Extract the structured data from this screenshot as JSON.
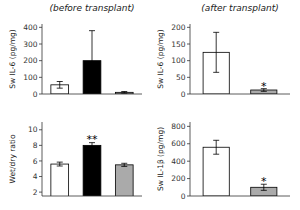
{
  "chart_data": [
    {
      "type": "bar",
      "title": "(before transplant)",
      "y_label": "Sw IL-6 (pg/mg)",
      "categories": [
        null,
        null,
        null
      ],
      "values": [
        55,
        200,
        10
      ],
      "errors": [
        20,
        180,
        5
      ],
      "colors": [
        "white",
        "black",
        "#aaaaaa"
      ],
      "ylim": [
        0,
        420
      ],
      "yticks": [
        0,
        100,
        200,
        300,
        400
      ],
      "tick_labels": "y",
      "grid": false
    },
    {
      "type": "bar",
      "title": "(after transplant)",
      "y_label": "Sw IL-6 (pg/mg)",
      "categories": [
        null,
        null
      ],
      "values": [
        125,
        12
      ],
      "errors": [
        60,
        4
      ],
      "colors": [
        "white",
        "#aaaaaa"
      ],
      "ylim": [
        0,
        210
      ],
      "yticks": [
        0,
        50,
        100,
        150,
        200
      ],
      "tick_labels": "y",
      "grid": false,
      "annotations": [
        {
          "text": "*",
          "index": 1,
          "y": 18
        }
      ]
    },
    {
      "type": "bar",
      "y_label": "Wet/dry ratio",
      "categories": [
        null,
        null,
        null
      ],
      "values": [
        5.6,
        8.0,
        5.5
      ],
      "errors": [
        0.25,
        0.35,
        0.2
      ],
      "colors": [
        "white",
        "black",
        "#aaaaaa"
      ],
      "ylim": [
        1.5,
        11
      ],
      "yticks": [
        2,
        4,
        6,
        8,
        10
      ],
      "tick_labels": "y",
      "grid": false,
      "annotations": [
        {
          "text": "**",
          "index": 1,
          "y": 8.55
        }
      ]
    },
    {
      "type": "bar",
      "y_label": "Sw IL-1β (pg/mg)",
      "categories": [
        null,
        null
      ],
      "values": [
        560,
        100
      ],
      "errors": [
        80,
        35
      ],
      "colors": [
        "white",
        "#aaaaaa"
      ],
      "ylim": [
        0,
        850
      ],
      "yticks": [
        0,
        200,
        400,
        600,
        800
      ],
      "tick_labels": "y",
      "grid": false,
      "annotations": [
        {
          "text": "*",
          "index": 1,
          "y": 140
        }
      ]
    }
  ]
}
